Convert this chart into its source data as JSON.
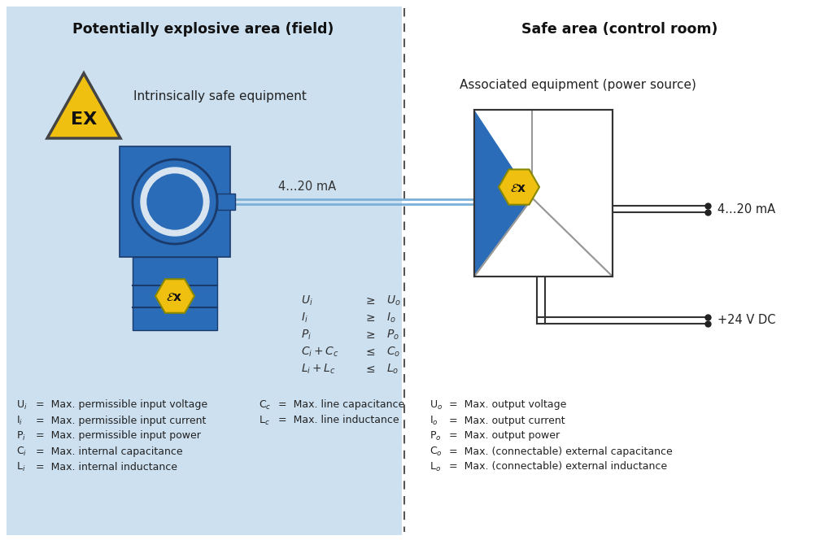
{
  "bg_color": "#ffffff",
  "left_bg_color": "#cce0f0",
  "left_title": "Potentially explosive area (field)",
  "right_title": "Safe area (control room)",
  "assoc_label": "Associated equipment (power source)",
  "intr_label": "Intrinsically safe equipment",
  "signal_label": "4...20 mA",
  "signal_label_right": "4...20 mA",
  "power_label": "+24 V DC",
  "blue_color": "#2b6cb8",
  "yellow_color": "#f0c010",
  "dark_blue": "#1a3a6b",
  "wire_color": "#7ab0d8",
  "eq_rows": [
    [
      "U$_i$",
      "≥",
      "U$_o$"
    ],
    [
      "I$_i$",
      "≥",
      "I$_o$"
    ],
    [
      "P$_i$",
      "≥",
      "P$_o$"
    ],
    [
      "C$_i$ + C$_c$",
      "≤",
      "C$_o$"
    ],
    [
      "L$_i$ + L$_c$",
      "≤",
      "L$_o$"
    ]
  ],
  "legend_left": [
    [
      "U$_i$",
      "Max. permissible input voltage"
    ],
    [
      "I$_i$",
      "Max. permissible input current"
    ],
    [
      "P$_i$",
      "Max. permissible input power"
    ],
    [
      "C$_i$",
      "Max. internal capacitance"
    ],
    [
      "L$_i$",
      "Max. internal inductance"
    ]
  ],
  "legend_mid": [
    [
      "C$_c$",
      "Max. line capacitance"
    ],
    [
      "L$_c$",
      "Max. line inductance"
    ]
  ],
  "legend_right": [
    [
      "U$_o$",
      "Max. output voltage"
    ],
    [
      "I$_o$",
      "Max. output current"
    ],
    [
      "P$_o$",
      "Max. output power"
    ],
    [
      "C$_o$",
      "Max. (connectable) external capacitance"
    ],
    [
      "L$_o$",
      "Max. (connectable) external inductance"
    ]
  ]
}
